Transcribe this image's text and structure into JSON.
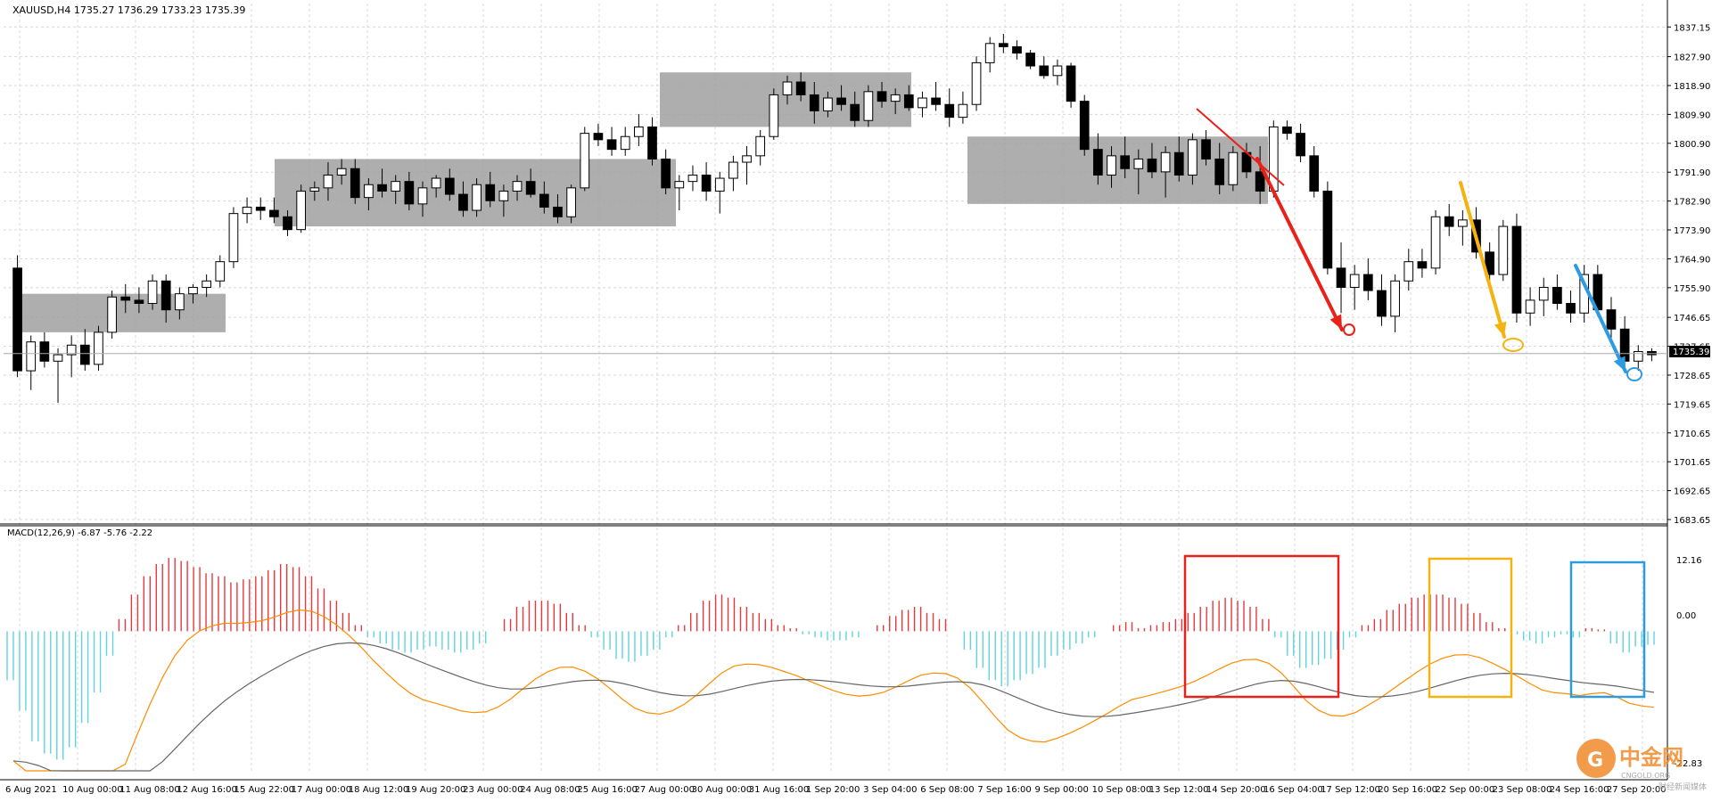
{
  "header": {
    "symbol_info": "XAUUSD,H4  1735.27 1736.29 1733.23 1735.39"
  },
  "macd": {
    "label": "MACD(12,26,9) -6.87 -5.76 -2.22",
    "axis_labels": [
      "12.16",
      "0.00",
      "-22.83"
    ]
  },
  "price_axis": {
    "ticks": [
      "1837.15",
      "1827.90",
      "1818.90",
      "1809.90",
      "1800.90",
      "1791.90",
      "1782.90",
      "1773.90",
      "1764.90",
      "1755.90",
      "1746.65",
      "1737.65",
      "1728.65",
      "1719.65",
      "1710.65",
      "1701.65",
      "1692.65",
      "1683.65"
    ],
    "current_price": "1735.39"
  },
  "time_axis": {
    "labels": [
      "6 Aug 2021",
      "10 Aug 00:00",
      "11 Aug 08:00",
      "12 Aug 16:00",
      "15 Aug 22:00",
      "17 Aug 00:00",
      "18 Aug 12:00",
      "19 Aug 20:00",
      "23 Aug 00:00",
      "24 Aug 08:00",
      "25 Aug 16:00",
      "27 Aug 00:00",
      "30 Aug 00:00",
      "31 Aug 16:00",
      "1 Sep 20:00",
      "3 Sep 04:00",
      "6 Sep 08:00",
      "7 Sep 16:00",
      "9 Sep 00:00",
      "10 Sep 08:00",
      "13 Sep 12:00",
      "14 Sep 20:00",
      "16 Sep 04:00",
      "17 Sep 12:00",
      "20 Sep 16:00",
      "22 Sep 00:00",
      "23 Sep 08:00",
      "24 Sep 16:00",
      "27 Sep 20:00"
    ]
  },
  "colors": {
    "hist_pos": "#e8383d",
    "hist_neg": "#5fd3df",
    "macd_line": "#ff8c00",
    "signal_line": "#666666",
    "arrow_red": "#e8221b",
    "arrow_orange": "#f5b312",
    "arrow_blue": "#2d9be0",
    "consolidation": "#a0a0a0"
  },
  "logo": {
    "text": "中金网",
    "sub": "CNGOLD.ORG",
    "sub2": "财经新闻媒体"
  },
  "chart_data": {
    "type": "candlestick",
    "symbol": "XAUUSD",
    "timeframe": "H4",
    "ylim": [
      1683.65,
      1840
    ],
    "candles_approx": [
      [
        1762,
        1766,
        1728,
        1730
      ],
      [
        1730,
        1741,
        1724,
        1739
      ],
      [
        1739,
        1742,
        1731,
        1733
      ],
      [
        1733,
        1737,
        1720,
        1735
      ],
      [
        1735,
        1741,
        1728,
        1738
      ],
      [
        1738,
        1743,
        1730,
        1732
      ],
      [
        1732,
        1744,
        1730,
        1742
      ],
      [
        1742,
        1755,
        1740,
        1753
      ],
      [
        1753,
        1757,
        1748,
        1752
      ],
      [
        1752,
        1756,
        1748,
        1751
      ],
      [
        1751,
        1760,
        1749,
        1758
      ],
      [
        1758,
        1760,
        1745,
        1749
      ],
      [
        1749,
        1756,
        1746,
        1754
      ],
      [
        1754,
        1757,
        1751,
        1756
      ],
      [
        1756,
        1760,
        1753,
        1758
      ],
      [
        1758,
        1766,
        1756,
        1764
      ],
      [
        1764,
        1781,
        1762,
        1779
      ],
      [
        1779,
        1784,
        1776,
        1781
      ],
      [
        1781,
        1784,
        1777,
        1780
      ],
      [
        1780,
        1784,
        1776,
        1778
      ],
      [
        1778,
        1780,
        1772,
        1774
      ],
      [
        1774,
        1788,
        1773,
        1786
      ],
      [
        1786,
        1789,
        1783,
        1787
      ],
      [
        1787,
        1795,
        1783,
        1791
      ],
      [
        1791,
        1796,
        1788,
        1793
      ],
      [
        1793,
        1796,
        1782,
        1784
      ],
      [
        1784,
        1790,
        1780,
        1788
      ],
      [
        1788,
        1793,
        1784,
        1786
      ],
      [
        1786,
        1791,
        1782,
        1789
      ],
      [
        1789,
        1792,
        1780,
        1782
      ],
      [
        1782,
        1789,
        1778,
        1787
      ],
      [
        1787,
        1791,
        1784,
        1790
      ],
      [
        1790,
        1793,
        1783,
        1785
      ],
      [
        1785,
        1789,
        1778,
        1780
      ],
      [
        1780,
        1790,
        1778,
        1788
      ],
      [
        1788,
        1792,
        1781,
        1783
      ],
      [
        1783,
        1788,
        1778,
        1786
      ],
      [
        1786,
        1791,
        1783,
        1789
      ],
      [
        1789,
        1793,
        1784,
        1785
      ],
      [
        1785,
        1789,
        1779,
        1781
      ],
      [
        1781,
        1785,
        1776,
        1778
      ],
      [
        1778,
        1788,
        1776,
        1787
      ],
      [
        1787,
        1806,
        1786,
        1804
      ],
      [
        1804,
        1807,
        1800,
        1802
      ],
      [
        1802,
        1806,
        1797,
        1799
      ],
      [
        1799,
        1806,
        1797,
        1803
      ],
      [
        1803,
        1810,
        1800,
        1806
      ],
      [
        1806,
        1809,
        1794,
        1796
      ],
      [
        1796,
        1799,
        1785,
        1787
      ],
      [
        1787,
        1791,
        1780,
        1789
      ],
      [
        1789,
        1794,
        1786,
        1791
      ],
      [
        1791,
        1795,
        1783,
        1786
      ],
      [
        1786,
        1792,
        1779,
        1790
      ],
      [
        1790,
        1797,
        1786,
        1795
      ],
      [
        1795,
        1800,
        1788,
        1797
      ],
      [
        1797,
        1805,
        1794,
        1803
      ],
      [
        1803,
        1818,
        1802,
        1816
      ],
      [
        1816,
        1822,
        1813,
        1820
      ],
      [
        1820,
        1823,
        1814,
        1816
      ],
      [
        1816,
        1820,
        1807,
        1811
      ],
      [
        1811,
        1817,
        1809,
        1815
      ],
      [
        1815,
        1819,
        1811,
        1813
      ],
      [
        1813,
        1817,
        1806,
        1808
      ],
      [
        1808,
        1819,
        1806,
        1817
      ],
      [
        1817,
        1820,
        1812,
        1814
      ],
      [
        1814,
        1818,
        1810,
        1816
      ],
      [
        1816,
        1819,
        1811,
        1812
      ],
      [
        1812,
        1817,
        1809,
        1815
      ],
      [
        1815,
        1820,
        1811,
        1813
      ],
      [
        1813,
        1818,
        1806,
        1809
      ],
      [
        1809,
        1817,
        1807,
        1813
      ],
      [
        1813,
        1828,
        1811,
        1826
      ],
      [
        1826,
        1834,
        1823,
        1832
      ],
      [
        1832,
        1835,
        1829,
        1831
      ],
      [
        1831,
        1833,
        1827,
        1829
      ],
      [
        1829,
        1830,
        1824,
        1825
      ],
      [
        1825,
        1828,
        1821,
        1822
      ],
      [
        1822,
        1827,
        1819,
        1825
      ],
      [
        1825,
        1826,
        1812,
        1814
      ],
      [
        1814,
        1816,
        1797,
        1799
      ],
      [
        1799,
        1804,
        1788,
        1791
      ],
      [
        1791,
        1800,
        1787,
        1797
      ],
      [
        1797,
        1803,
        1790,
        1793
      ],
      [
        1793,
        1799,
        1785,
        1796
      ],
      [
        1796,
        1801,
        1790,
        1792
      ],
      [
        1792,
        1800,
        1784,
        1798
      ],
      [
        1798,
        1803,
        1789,
        1791
      ],
      [
        1791,
        1804,
        1788,
        1802
      ],
      [
        1802,
        1805,
        1794,
        1796
      ],
      [
        1796,
        1801,
        1785,
        1788
      ],
      [
        1788,
        1800,
        1786,
        1798
      ],
      [
        1798,
        1801,
        1790,
        1792
      ],
      [
        1792,
        1800,
        1782,
        1786
      ],
      [
        1786,
        1808,
        1784,
        1806
      ],
      [
        1806,
        1808,
        1802,
        1804
      ],
      [
        1804,
        1807,
        1795,
        1797
      ],
      [
        1797,
        1800,
        1784,
        1786
      ],
      [
        1786,
        1789,
        1760,
        1762
      ],
      [
        1762,
        1770,
        1748,
        1756
      ],
      [
        1756,
        1763,
        1749,
        1760
      ],
      [
        1760,
        1765,
        1752,
        1755
      ],
      [
        1755,
        1760,
        1744,
        1747
      ],
      [
        1747,
        1760,
        1742,
        1758
      ],
      [
        1758,
        1768,
        1755,
        1764
      ],
      [
        1764,
        1768,
        1759,
        1762
      ],
      [
        1762,
        1780,
        1760,
        1778
      ],
      [
        1778,
        1782,
        1772,
        1775
      ],
      [
        1775,
        1780,
        1769,
        1777
      ],
      [
        1777,
        1781,
        1765,
        1767
      ],
      [
        1767,
        1770,
        1758,
        1760
      ],
      [
        1760,
        1777,
        1758,
        1775
      ],
      [
        1775,
        1779,
        1745,
        1748
      ],
      [
        1748,
        1756,
        1744,
        1752
      ],
      [
        1752,
        1759,
        1747,
        1756
      ],
      [
        1756,
        1760,
        1749,
        1751
      ],
      [
        1751,
        1755,
        1745,
        1748
      ],
      [
        1748,
        1763,
        1745,
        1760
      ],
      [
        1760,
        1763,
        1747,
        1749
      ],
      [
        1749,
        1753,
        1740,
        1743
      ],
      [
        1743,
        1747,
        1731,
        1733
      ],
      [
        1733,
        1738,
        1730,
        1736
      ],
      [
        1736,
        1737,
        1733,
        1735
      ]
    ],
    "consolidation_zones": [
      {
        "from": "10 Aug",
        "to": "12 Aug",
        "price_low": 1742,
        "price_high": 1754
      },
      {
        "from": "15 Aug",
        "to": "27 Aug",
        "price_low": 1775,
        "price_high": 1796
      },
      {
        "from": "27 Aug",
        "to": "3 Sep",
        "price_low": 1806,
        "price_high": 1823
      },
      {
        "from": "6 Sep",
        "to": "14 Sep",
        "price_low": 1782,
        "price_high": 1803
      }
    ],
    "macd_params": "MACD(12,26,9)",
    "macd_ylim": [
      -22.83,
      12.16
    ],
    "macd_hist_approx": [
      -8,
      -13,
      -18,
      -20,
      -21,
      -19,
      -15,
      -10,
      -4,
      2,
      6,
      9,
      11,
      12,
      11.5,
      10.5,
      9.5,
      9,
      8,
      8.5,
      9,
      10,
      11,
      10.5,
      9,
      7,
      5,
      3,
      1,
      -1,
      -2,
      -3,
      -3.5,
      -3,
      -2.5,
      -3,
      -3.5,
      -3,
      -2,
      0,
      2,
      4,
      5,
      5,
      4.5,
      3,
      1,
      -1,
      -3,
      -4.5,
      -5,
      -4,
      -3,
      -1,
      1,
      3,
      5,
      6,
      5.5,
      4,
      3,
      2,
      1,
      0.5,
      -0.5,
      -1,
      -1.5,
      -1.5,
      -1,
      0,
      1,
      2.5,
      3.5,
      4,
      3,
      2,
      0,
      -3,
      -6,
      -8,
      -9,
      -8,
      -7,
      -6,
      -4,
      -3,
      -2,
      -1,
      0,
      1,
      1.5,
      0.5,
      1,
      1.5,
      2,
      3,
      4,
      5,
      5.5,
      5,
      4,
      2,
      -1,
      -4,
      -6,
      -5.5,
      -4.5,
      -3,
      -1,
      1,
      2,
      3.5,
      4.5,
      5.5,
      6,
      6,
      5.5,
      4.5,
      3,
      1.5,
      0.5,
      -0.5,
      -1.5,
      -2,
      -1,
      -0.5,
      -1,
      0.5,
      0.3,
      -2,
      -3.5,
      -2.5,
      -2.22
    ]
  }
}
